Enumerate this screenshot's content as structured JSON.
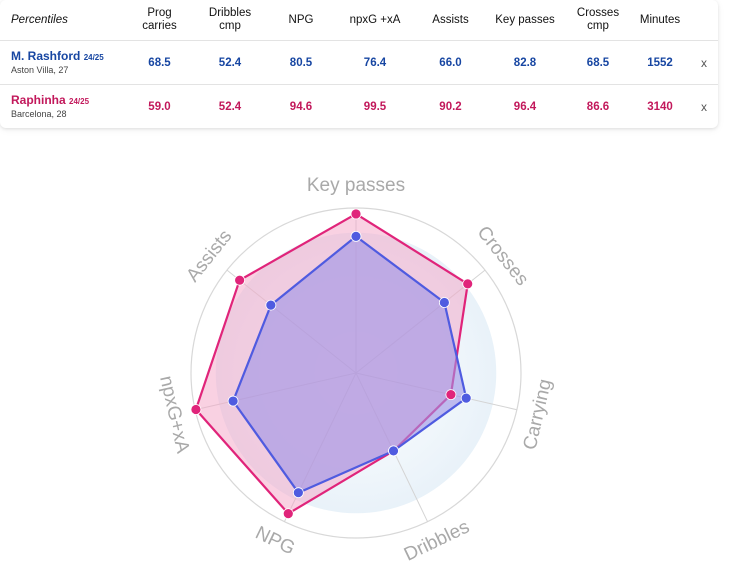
{
  "table": {
    "header_label": "Percentiles",
    "columns": [
      [
        "Prog",
        "carries"
      ],
      [
        "Dribbles",
        "cmp"
      ],
      [
        "NPG"
      ],
      [
        "npxG +xA"
      ],
      [
        "Assists"
      ],
      [
        "Key passes"
      ],
      [
        "Crosses",
        "cmp"
      ],
      [
        "Minutes"
      ]
    ],
    "remove_label": "x",
    "players": [
      {
        "name": "M. Rashford",
        "season": "24/25",
        "club": "Aston Villa, 27",
        "values": [
          "68.5",
          "52.4",
          "80.5",
          "76.4",
          "66.0",
          "82.8",
          "68.5",
          "1552"
        ],
        "color": "#1746a2"
      },
      {
        "name": "Raphinha",
        "season": "24/25",
        "club": "Barcelona, 28",
        "values": [
          "59.0",
          "52.4",
          "94.6",
          "99.5",
          "90.2",
          "96.4",
          "86.6",
          "3140"
        ],
        "color": "#c2185b"
      }
    ]
  },
  "chart_data": {
    "type": "radar",
    "axes": [
      "Key passes",
      "Crosses",
      "Carrying",
      "Dribbles",
      "NPG",
      "npxG+xA",
      "Assists"
    ],
    "range": [
      0,
      100
    ],
    "series": [
      {
        "name": "M. Rashford",
        "values": [
          82.8,
          68.5,
          68.5,
          52.4,
          80.5,
          76.4,
          66.0
        ],
        "color": "#4f5be0",
        "fill": "#9c92e6"
      },
      {
        "name": "Raphinha",
        "values": [
          96.4,
          86.6,
          59.0,
          52.4,
          94.6,
          99.5,
          90.2
        ],
        "color": "#e0247a",
        "fill": "#f3a3c6"
      }
    ]
  }
}
